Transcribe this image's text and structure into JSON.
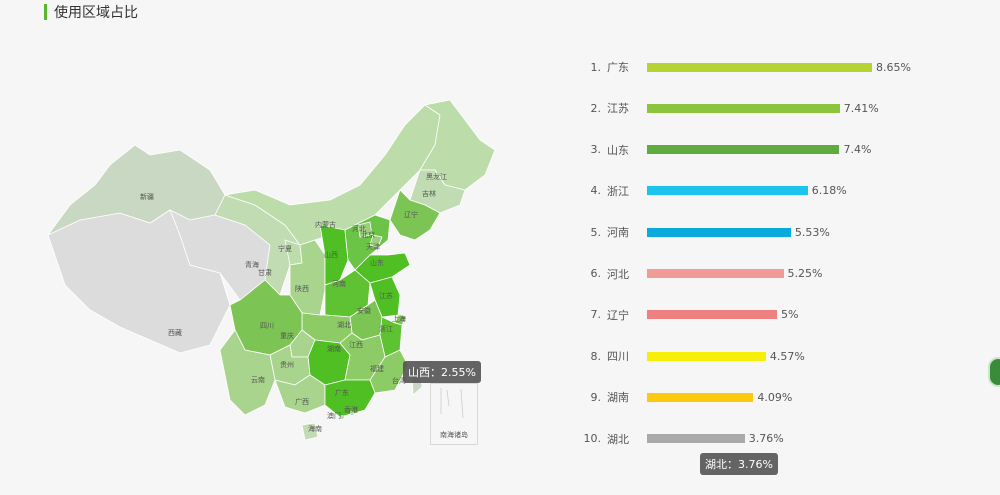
{
  "header": {
    "title": "使用区域占比"
  },
  "chart_data": [
    {
      "type": "map",
      "regions": [
        {
          "name": "新疆"
        },
        {
          "name": "西藏"
        },
        {
          "name": "青海"
        },
        {
          "name": "甘肃"
        },
        {
          "name": "内蒙古"
        },
        {
          "name": "宁夏"
        },
        {
          "name": "陕西"
        },
        {
          "name": "四川"
        },
        {
          "name": "重庆"
        },
        {
          "name": "云南"
        },
        {
          "name": "贵州"
        },
        {
          "name": "广西"
        },
        {
          "name": "海南"
        },
        {
          "name": "广东"
        },
        {
          "name": "湖南"
        },
        {
          "name": "湖北"
        },
        {
          "name": "河南"
        },
        {
          "name": "山西"
        },
        {
          "name": "河北"
        },
        {
          "name": "北京"
        },
        {
          "name": "天津"
        },
        {
          "name": "山东"
        },
        {
          "name": "江苏"
        },
        {
          "name": "安徽"
        },
        {
          "name": "上海"
        },
        {
          "name": "浙江"
        },
        {
          "name": "江西"
        },
        {
          "name": "福建"
        },
        {
          "name": "台湾"
        },
        {
          "name": "香港"
        },
        {
          "name": "澳门"
        },
        {
          "name": "辽宁"
        },
        {
          "name": "吉林"
        },
        {
          "name": "黑龙江"
        }
      ],
      "tooltip": "山西：2.55%",
      "inset_label": "南海诸岛"
    },
    {
      "type": "bar",
      "orientation": "horizontal",
      "ranks": [
        "1.",
        "2.",
        "3.",
        "4.",
        "5.",
        "6.",
        "7.",
        "8.",
        "9.",
        "10."
      ],
      "categories": [
        "广东",
        "江苏",
        "山东",
        "浙江",
        "河南",
        "河北",
        "辽宁",
        "四川",
        "湖南",
        "湖北"
      ],
      "values": [
        8.65,
        7.41,
        7.4,
        6.18,
        5.53,
        5.25,
        5,
        4.57,
        4.09,
        3.76
      ],
      "value_labels": [
        "8.65%",
        "7.41%",
        "7.4%",
        "6.18%",
        "5.53%",
        "5.25%",
        "5%",
        "4.57%",
        "4.09%",
        "3.76%"
      ],
      "colors": [
        "#b5d334",
        "#8cc43e",
        "#5fac3e",
        "#1cc3ec",
        "#0aaadc",
        "#f29a96",
        "#ef8080",
        "#f7ee0a",
        "#fcc90e",
        "#a9a9a9"
      ],
      "tooltip": "湖北：3.76%"
    }
  ]
}
